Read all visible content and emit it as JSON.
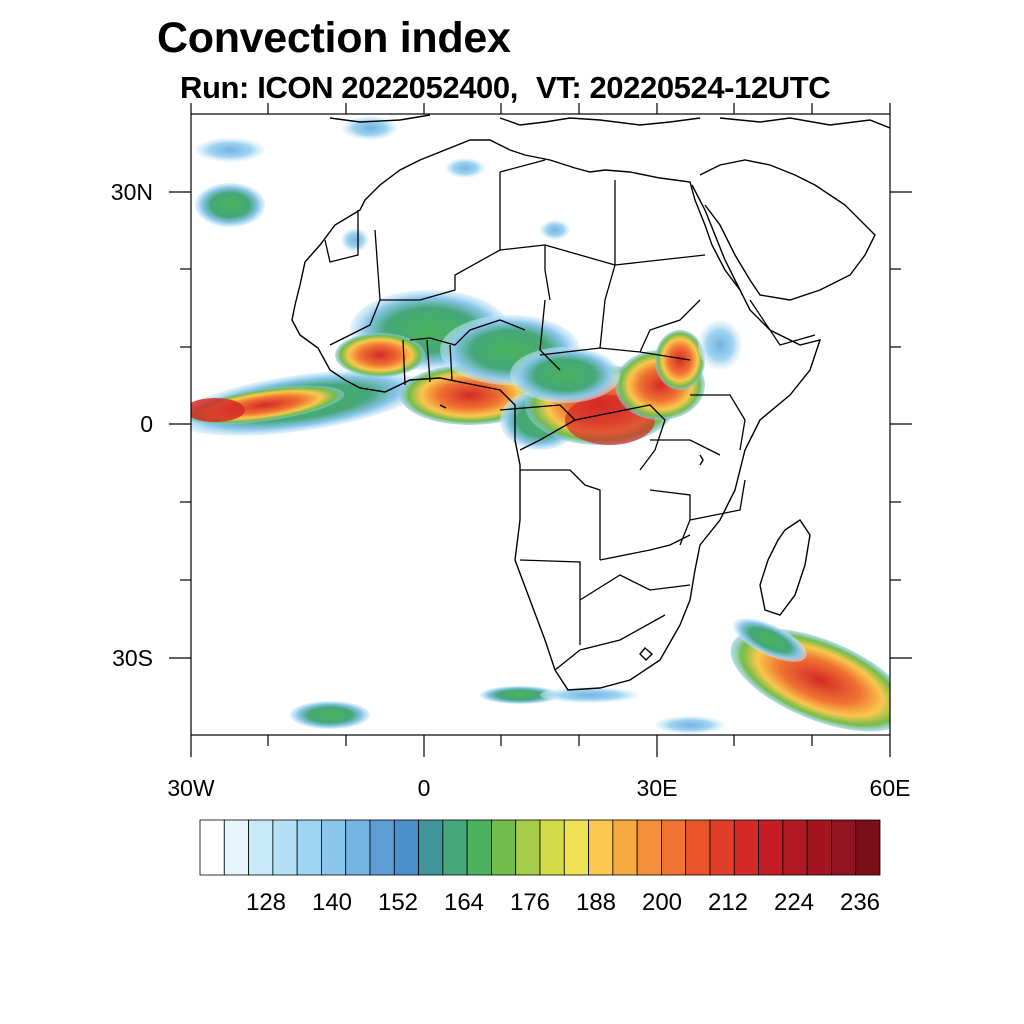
{
  "title": "Convection index",
  "subtitle": {
    "run_label": "Run: ICON 2022052400,",
    "vt_label": "VT: 20220524-12UTC"
  },
  "map": {
    "region": "Africa",
    "lon_range": [
      -30,
      60
    ],
    "lat_range": [
      -40,
      40
    ],
    "y_ticks": [
      {
        "value": 30,
        "label": "30N"
      },
      {
        "value": 0,
        "label": "0"
      },
      {
        "value": -30,
        "label": "30S"
      }
    ],
    "x_ticks": [
      {
        "value": -30,
        "label": "30W"
      },
      {
        "value": 0,
        "label": "0"
      },
      {
        "value": 30,
        "label": "30E"
      },
      {
        "value": 60,
        "label": "60E"
      }
    ]
  },
  "colorbar": {
    "colors": [
      "#ffffff",
      "#e6f4fb",
      "#c9e9f8",
      "#b3e0f5",
      "#9fd5f2",
      "#8ac6ea",
      "#74b3e2",
      "#5c9dd5",
      "#4a8fc9",
      "#3f9598",
      "#45a77a",
      "#4bb35c",
      "#72bc4c",
      "#a6cc4a",
      "#d2dc4a",
      "#efe254",
      "#f9c84d",
      "#f8aa42",
      "#f58f3a",
      "#ef7331",
      "#e9552a",
      "#df3f28",
      "#d42a28",
      "#c41d26",
      "#b31924",
      "#a21622",
      "#901320",
      "#7a0f1a"
    ],
    "labels": [
      "128",
      "140",
      "152",
      "164",
      "176",
      "188",
      "200",
      "212",
      "224",
      "236"
    ]
  }
}
